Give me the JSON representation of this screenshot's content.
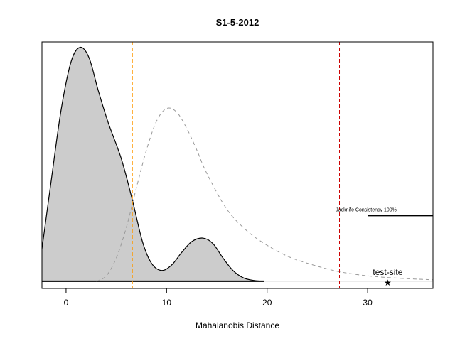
{
  "chart_data": {
    "type": "area",
    "title": "S1-5-2012",
    "xlabel": "Mahalanobis Distance",
    "ylabel": "",
    "xlim": [
      -2.4,
      36.5
    ],
    "ylim": [
      -0.004,
      0.133
    ],
    "xticks": [
      0,
      10,
      20,
      30
    ],
    "grid": false,
    "series": [
      {
        "style": "filled-density",
        "color": "#000000",
        "fill": "#cccccc",
        "points": [
          [
            -2.4,
            0.018
          ],
          [
            -1.5,
            0.055
          ],
          [
            -0.5,
            0.095
          ],
          [
            0.5,
            0.122
          ],
          [
            1.4,
            0.13
          ],
          [
            2.3,
            0.124
          ],
          [
            3.2,
            0.106
          ],
          [
            4.2,
            0.088
          ],
          [
            5.5,
            0.068
          ],
          [
            6.6,
            0.045
          ],
          [
            7.6,
            0.022
          ],
          [
            8.5,
            0.01
          ],
          [
            9.5,
            0.006
          ],
          [
            10.5,
            0.009
          ],
          [
            11.5,
            0.016
          ],
          [
            12.5,
            0.022
          ],
          [
            13.6,
            0.024
          ],
          [
            14.6,
            0.021
          ],
          [
            15.6,
            0.013
          ],
          [
            16.6,
            0.006
          ],
          [
            17.6,
            0.002
          ],
          [
            18.6,
            0.0005
          ],
          [
            19.6,
            0.0
          ]
        ]
      },
      {
        "style": "dashed-reference",
        "color": "#999999",
        "points": [
          [
            3.0,
            0.0
          ],
          [
            4.0,
            0.003
          ],
          [
            5.0,
            0.013
          ],
          [
            6.0,
            0.03
          ],
          [
            7.0,
            0.052
          ],
          [
            8.0,
            0.073
          ],
          [
            9.0,
            0.089
          ],
          [
            10.0,
            0.096
          ],
          [
            11.0,
            0.094
          ],
          [
            12.0,
            0.085
          ],
          [
            13.0,
            0.073
          ],
          [
            14.0,
            0.06
          ],
          [
            16.0,
            0.04
          ],
          [
            18.0,
            0.028
          ],
          [
            20.0,
            0.02
          ],
          [
            22.0,
            0.014
          ],
          [
            24.0,
            0.01
          ],
          [
            27.0,
            0.0055
          ],
          [
            30.0,
            0.003
          ],
          [
            33.0,
            0.0017
          ],
          [
            36.5,
            0.0008
          ]
        ]
      }
    ],
    "baseline": {
      "y": 0.0,
      "from_x": -2.4,
      "to_x": 19.7,
      "color": "#000000"
    },
    "vertical_lines": [
      {
        "x": 6.6,
        "color": "#ff9900",
        "dash": "dashed"
      },
      {
        "x": 27.2,
        "color": "#cc0000",
        "dash": "dashed"
      }
    ],
    "annotations": {
      "jackknife": {
        "text": "Jacknife Consistency 100%",
        "x_start": 30.0,
        "y": 0.0365
      },
      "test_site": {
        "label": "test-site",
        "marker": "★",
        "x": 32.0,
        "y": -0.0005
      }
    }
  }
}
